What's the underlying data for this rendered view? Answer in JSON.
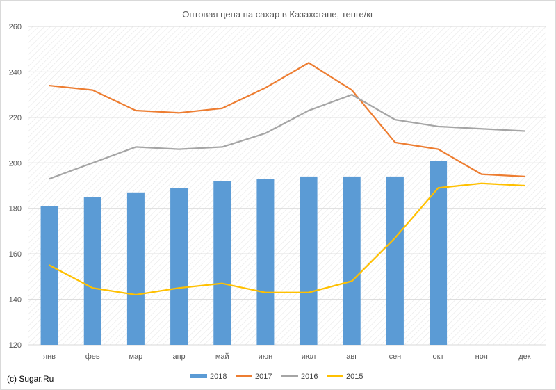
{
  "chart_data": {
    "type": "bar",
    "title": "Оптовая цена на сахар в Казахстане, тенге/кг",
    "xlabel": "",
    "ylabel": "",
    "ylim": [
      120,
      260
    ],
    "yticks": [
      120,
      140,
      160,
      180,
      200,
      220,
      240,
      260
    ],
    "grid": true,
    "legend_position": "bottom",
    "categories": [
      "янв",
      "фев",
      "мар",
      "апр",
      "май",
      "июн",
      "июл",
      "авг",
      "сен",
      "окт",
      "ноя",
      "дек"
    ],
    "series": [
      {
        "name": "2018",
        "type": "bar",
        "color": "#5b9bd5",
        "values": [
          181,
          185,
          187,
          189,
          192,
          193,
          194,
          194,
          194,
          201,
          null,
          null
        ]
      },
      {
        "name": "2017",
        "type": "line",
        "color": "#ed7d31",
        "values": [
          234,
          232,
          223,
          222,
          224,
          233,
          244,
          232,
          209,
          206,
          195,
          194
        ]
      },
      {
        "name": "2016",
        "type": "line",
        "color": "#a5a5a5",
        "values": [
          193,
          200,
          207,
          206,
          207,
          213,
          223,
          230,
          219,
          216,
          215,
          214
        ]
      },
      {
        "name": "2015",
        "type": "line",
        "color": "#ffc000",
        "values": [
          155,
          145,
          142,
          145,
          147,
          143,
          143,
          148,
          167,
          189,
          191,
          190
        ]
      }
    ]
  },
  "credit": "(c) Sugar.Ru"
}
